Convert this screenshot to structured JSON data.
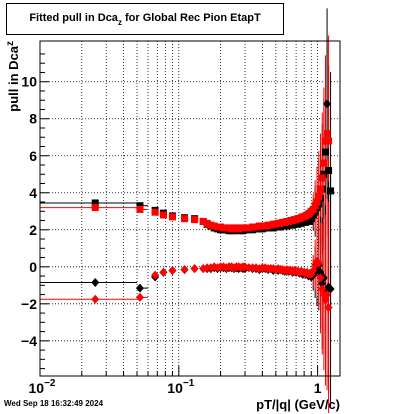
{
  "title": {
    "main": "Fitted pull in Dca",
    "sub": "z",
    "rest": " for Global Rec Pion EtapT"
  },
  "timestamp": "Wed Sep 18 16:32:49 2024",
  "chart_data": {
    "type": "scatter",
    "xlabel": "pT/|q| (GeV/c)",
    "ylabel": {
      "main": "pull in Dca",
      "sub": "z"
    },
    "xscale": "log",
    "xlim": [
      0.01,
      1.45
    ],
    "ylim": [
      -5.9,
      12.2
    ],
    "grid": true,
    "y_ticks": [
      -4,
      -2,
      0,
      2,
      4,
      6,
      8,
      10
    ],
    "x_ticks": [
      {
        "value": 0.01,
        "base": "10",
        "exp": "−2"
      },
      {
        "value": 0.1,
        "base": "10",
        "exp": "−1"
      },
      {
        "value": 1,
        "base": "1",
        "exp": ""
      }
    ],
    "series": [
      {
        "marker": "square",
        "color": "#000000",
        "points": [
          [
            0.025,
            3.45
          ],
          [
            0.0525,
            3.3
          ],
          [
            0.0675,
            3.05
          ],
          [
            0.0775,
            2.9
          ],
          [
            0.09,
            2.75
          ],
          [
            0.11,
            2.65
          ],
          [
            0.13,
            2.6
          ],
          [
            0.15,
            2.45
          ],
          [
            0.16,
            2.3
          ],
          [
            0.17,
            2.2
          ],
          [
            0.18,
            2.1
          ],
          [
            0.19,
            2.05
          ],
          [
            0.2,
            2.0
          ],
          [
            0.21,
            2.0
          ],
          [
            0.22,
            2.0
          ],
          [
            0.23,
            1.95
          ],
          [
            0.24,
            1.95
          ],
          [
            0.25,
            1.95
          ],
          [
            0.26,
            2.0
          ],
          [
            0.27,
            1.95
          ],
          [
            0.28,
            2.0
          ],
          [
            0.29,
            1.95
          ],
          [
            0.3,
            2.0
          ],
          [
            0.32,
            2.0
          ],
          [
            0.34,
            2.0
          ],
          [
            0.36,
            2.05
          ],
          [
            0.38,
            2.05
          ],
          [
            0.4,
            2.05
          ],
          [
            0.42,
            2.1
          ],
          [
            0.44,
            2.1
          ],
          [
            0.46,
            2.15
          ],
          [
            0.48,
            2.1
          ],
          [
            0.5,
            2.15
          ],
          [
            0.52,
            2.2
          ],
          [
            0.54,
            2.15
          ],
          [
            0.56,
            2.2
          ],
          [
            0.58,
            2.25
          ],
          [
            0.6,
            2.2
          ],
          [
            0.62,
            2.25
          ],
          [
            0.64,
            2.3
          ],
          [
            0.66,
            2.25
          ],
          [
            0.68,
            2.3
          ],
          [
            0.7,
            2.35
          ],
          [
            0.72,
            2.3
          ],
          [
            0.74,
            2.4
          ],
          [
            0.76,
            2.35
          ],
          [
            0.78,
            2.4
          ],
          [
            0.8,
            2.45
          ],
          [
            0.82,
            2.4
          ],
          [
            0.84,
            2.5
          ],
          [
            0.86,
            2.55
          ],
          [
            0.88,
            2.45
          ],
          [
            0.9,
            2.6
          ],
          [
            0.93,
            2.8
          ],
          [
            0.96,
            3.0
          ],
          [
            0.99,
            3.2
          ],
          [
            1.02,
            3.4
          ],
          [
            1.05,
            3.7
          ],
          [
            1.08,
            4.2
          ],
          [
            1.11,
            5.0
          ],
          [
            1.14,
            6.2
          ],
          [
            1.17,
            6.8
          ],
          [
            1.2,
            5.2
          ],
          [
            1.24,
            4.1
          ]
        ],
        "segments": [
          {
            "x": [
              0.01,
              0.05
            ],
            "y": 3.45
          },
          {
            "x": [
              0.05,
              0.06
            ],
            "y": 3.3
          }
        ]
      },
      {
        "marker": "square",
        "color": "#ff0000",
        "points": [
          [
            0.025,
            3.2
          ],
          [
            0.0525,
            3.1
          ],
          [
            0.0675,
            2.95
          ],
          [
            0.0775,
            2.8
          ],
          [
            0.09,
            2.7
          ],
          [
            0.11,
            2.6
          ],
          [
            0.13,
            2.55
          ],
          [
            0.15,
            2.45
          ],
          [
            0.16,
            2.35
          ],
          [
            0.17,
            2.25
          ],
          [
            0.18,
            2.2
          ],
          [
            0.19,
            2.15
          ],
          [
            0.2,
            2.15
          ],
          [
            0.21,
            2.1
          ],
          [
            0.22,
            2.1
          ],
          [
            0.23,
            2.1
          ],
          [
            0.24,
            2.05
          ],
          [
            0.25,
            2.1
          ],
          [
            0.26,
            2.1
          ],
          [
            0.27,
            2.05
          ],
          [
            0.28,
            2.1
          ],
          [
            0.29,
            2.1
          ],
          [
            0.3,
            2.1
          ],
          [
            0.32,
            2.1
          ],
          [
            0.34,
            2.15
          ],
          [
            0.36,
            2.15
          ],
          [
            0.38,
            2.2
          ],
          [
            0.4,
            2.2
          ],
          [
            0.42,
            2.2
          ],
          [
            0.44,
            2.25
          ],
          [
            0.46,
            2.25
          ],
          [
            0.48,
            2.3
          ],
          [
            0.5,
            2.3
          ],
          [
            0.52,
            2.35
          ],
          [
            0.54,
            2.35
          ],
          [
            0.56,
            2.4
          ],
          [
            0.58,
            2.4
          ],
          [
            0.6,
            2.45
          ],
          [
            0.62,
            2.45
          ],
          [
            0.64,
            2.5
          ],
          [
            0.66,
            2.5
          ],
          [
            0.68,
            2.55
          ],
          [
            0.7,
            2.55
          ],
          [
            0.72,
            2.6
          ],
          [
            0.74,
            2.6
          ],
          [
            0.76,
            2.65
          ],
          [
            0.78,
            2.7
          ],
          [
            0.8,
            2.7
          ],
          [
            0.82,
            2.75
          ],
          [
            0.84,
            2.8
          ],
          [
            0.86,
            2.85
          ],
          [
            0.88,
            2.9
          ],
          [
            0.9,
            3.0
          ],
          [
            0.93,
            3.1
          ],
          [
            0.96,
            3.3
          ],
          [
            0.99,
            3.5
          ],
          [
            1.02,
            3.8
          ],
          [
            1.05,
            4.2
          ],
          [
            1.08,
            4.8
          ],
          [
            1.11,
            5.6
          ],
          [
            1.14,
            6.8
          ],
          [
            1.17,
            7.2
          ],
          [
            1.2,
            6.8
          ]
        ],
        "segments": [
          {
            "x": [
              0.01,
              0.05
            ],
            "y": 3.2
          },
          {
            "x": [
              0.05,
              0.06
            ],
            "y": 3.1
          }
        ]
      },
      {
        "marker": "diamond",
        "color": "#000000",
        "points": [
          [
            0.025,
            -0.85
          ],
          [
            0.0525,
            -1.15
          ],
          [
            0.0675,
            -0.55
          ],
          [
            0.0775,
            -0.3
          ],
          [
            0.09,
            -0.2
          ],
          [
            0.11,
            -0.15
          ],
          [
            0.13,
            -0.1
          ],
          [
            0.15,
            -0.1
          ],
          [
            0.16,
            -0.1
          ],
          [
            0.17,
            -0.1
          ],
          [
            0.18,
            -0.05
          ],
          [
            0.19,
            -0.1
          ],
          [
            0.2,
            -0.05
          ],
          [
            0.21,
            -0.05
          ],
          [
            0.22,
            -0.1
          ],
          [
            0.23,
            -0.05
          ],
          [
            0.24,
            -0.05
          ],
          [
            0.25,
            -0.1
          ],
          [
            0.26,
            -0.05
          ],
          [
            0.27,
            -0.1
          ],
          [
            0.28,
            -0.05
          ],
          [
            0.29,
            -0.1
          ],
          [
            0.3,
            -0.1
          ],
          [
            0.32,
            -0.05
          ],
          [
            0.34,
            -0.1
          ],
          [
            0.36,
            -0.1
          ],
          [
            0.38,
            -0.15
          ],
          [
            0.4,
            -0.1
          ],
          [
            0.42,
            -0.1
          ],
          [
            0.44,
            -0.15
          ],
          [
            0.46,
            -0.1
          ],
          [
            0.48,
            -0.2
          ],
          [
            0.5,
            -0.15
          ],
          [
            0.52,
            -0.2
          ],
          [
            0.54,
            -0.15
          ],
          [
            0.56,
            -0.2
          ],
          [
            0.58,
            -0.25
          ],
          [
            0.6,
            -0.2
          ],
          [
            0.62,
            -0.25
          ],
          [
            0.64,
            -0.2
          ],
          [
            0.66,
            -0.3
          ],
          [
            0.68,
            -0.25
          ],
          [
            0.7,
            -0.3
          ],
          [
            0.72,
            -0.25
          ],
          [
            0.74,
            -0.35
          ],
          [
            0.76,
            -0.3
          ],
          [
            0.78,
            -0.4
          ],
          [
            0.8,
            -0.3
          ],
          [
            0.82,
            -0.4
          ],
          [
            0.84,
            -0.35
          ],
          [
            0.86,
            -0.5
          ],
          [
            0.88,
            -0.4
          ],
          [
            0.9,
            -0.55
          ],
          [
            0.93,
            -0.45
          ],
          [
            0.96,
            -0.3
          ],
          [
            0.99,
            -0.2
          ],
          [
            1.02,
            0.1
          ],
          [
            1.05,
            -0.3
          ],
          [
            1.08,
            -0.9
          ],
          [
            1.11,
            -0.6
          ],
          [
            1.14,
            -1.3
          ],
          [
            1.17,
            8.8
          ],
          [
            1.2,
            -1.1
          ],
          [
            1.24,
            -1.2
          ]
        ],
        "segments": [
          {
            "x": [
              0.01,
              0.05
            ],
            "y": -0.85
          },
          {
            "x": [
              0.05,
              0.06
            ],
            "y": -1.15
          }
        ]
      },
      {
        "marker": "diamond",
        "color": "#ff0000",
        "points": [
          [
            0.025,
            -1.75
          ],
          [
            0.0525,
            -1.65
          ],
          [
            0.0675,
            -0.45
          ],
          [
            0.0775,
            -0.3
          ],
          [
            0.09,
            -0.2
          ],
          [
            0.11,
            -0.15
          ],
          [
            0.13,
            -0.1
          ],
          [
            0.15,
            -0.1
          ],
          [
            0.16,
            -0.05
          ],
          [
            0.17,
            -0.05
          ],
          [
            0.18,
            0.0
          ],
          [
            0.19,
            -0.05
          ],
          [
            0.2,
            0.0
          ],
          [
            0.21,
            0.0
          ],
          [
            0.22,
            -0.05
          ],
          [
            0.23,
            0.0
          ],
          [
            0.24,
            0.0
          ],
          [
            0.25,
            -0.05
          ],
          [
            0.26,
            0.0
          ],
          [
            0.27,
            0.0
          ],
          [
            0.28,
            -0.05
          ],
          [
            0.29,
            0.0
          ],
          [
            0.3,
            0.0
          ],
          [
            0.32,
            -0.05
          ],
          [
            0.34,
            -0.05
          ],
          [
            0.36,
            -0.05
          ],
          [
            0.38,
            -0.1
          ],
          [
            0.4,
            -0.05
          ],
          [
            0.42,
            -0.05
          ],
          [
            0.44,
            -0.1
          ],
          [
            0.46,
            -0.1
          ],
          [
            0.48,
            -0.1
          ],
          [
            0.5,
            -0.15
          ],
          [
            0.52,
            -0.1
          ],
          [
            0.54,
            -0.15
          ],
          [
            0.56,
            -0.15
          ],
          [
            0.58,
            -0.2
          ],
          [
            0.6,
            -0.15
          ],
          [
            0.62,
            -0.2
          ],
          [
            0.64,
            -0.2
          ],
          [
            0.66,
            -0.25
          ],
          [
            0.68,
            -0.2
          ],
          [
            0.7,
            -0.25
          ],
          [
            0.72,
            -0.25
          ],
          [
            0.74,
            -0.3
          ],
          [
            0.76,
            -0.25
          ],
          [
            0.78,
            -0.3
          ],
          [
            0.8,
            -0.3
          ],
          [
            0.82,
            -0.35
          ],
          [
            0.84,
            -0.3
          ],
          [
            0.86,
            -0.4
          ],
          [
            0.88,
            -0.35
          ],
          [
            0.9,
            -0.4
          ],
          [
            0.93,
            -0.2
          ],
          [
            0.96,
            0.1
          ],
          [
            0.99,
            0.3
          ],
          [
            1.02,
            0.2
          ],
          [
            1.05,
            -0.6
          ],
          [
            1.08,
            -1.2
          ],
          [
            1.11,
            -1.5
          ],
          [
            1.14,
            -1.8
          ],
          [
            1.17,
            -1.5
          ],
          [
            1.2,
            -2.2
          ]
        ],
        "segments": [
          {
            "x": [
              0.01,
              0.05
            ],
            "y": -1.75
          },
          {
            "x": [
              0.05,
              0.06
            ],
            "y": -1.65
          }
        ]
      }
    ]
  }
}
